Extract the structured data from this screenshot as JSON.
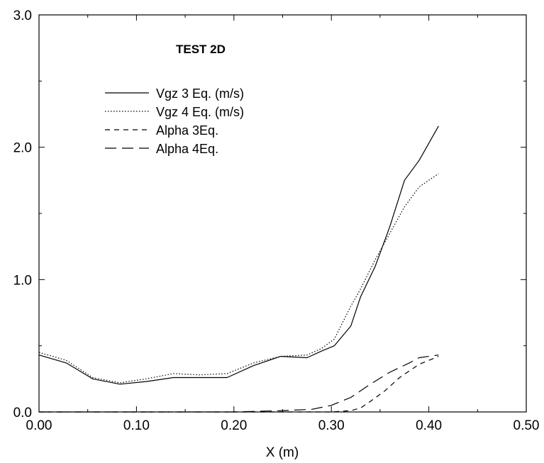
{
  "chart_data": {
    "type": "line",
    "title": "TEST 2D",
    "xlabel": "X (m)",
    "ylabel": "",
    "xlim": [
      0.0,
      0.5
    ],
    "ylim": [
      0.0,
      3.0
    ],
    "x_ticks": [
      "0.00",
      "0.10",
      "0.20",
      "0.30",
      "0.40",
      "0.50"
    ],
    "y_ticks": [
      "0.0",
      "1.0",
      "2.0",
      "3.0"
    ],
    "grid": false,
    "legend_position": "top-left",
    "series": [
      {
        "name": "Vgz 3 Eq. (m/s)",
        "style": "solid",
        "x": [
          0.0,
          0.028,
          0.055,
          0.083,
          0.11,
          0.138,
          0.165,
          0.193,
          0.22,
          0.248,
          0.275,
          0.29,
          0.303,
          0.32,
          0.33,
          0.345,
          0.36,
          0.375,
          0.39,
          0.41
        ],
        "y": [
          0.43,
          0.37,
          0.25,
          0.21,
          0.23,
          0.26,
          0.26,
          0.26,
          0.35,
          0.42,
          0.41,
          0.46,
          0.5,
          0.65,
          0.87,
          1.1,
          1.4,
          1.75,
          1.9,
          2.16
        ]
      },
      {
        "name": "Vgz 4 Eq. (m/s)",
        "style": "dotted",
        "x": [
          0.0,
          0.028,
          0.055,
          0.083,
          0.11,
          0.138,
          0.165,
          0.193,
          0.22,
          0.248,
          0.275,
          0.29,
          0.303,
          0.32,
          0.33,
          0.345,
          0.36,
          0.375,
          0.39,
          0.41
        ],
        "y": [
          0.45,
          0.39,
          0.26,
          0.22,
          0.25,
          0.29,
          0.28,
          0.29,
          0.37,
          0.42,
          0.43,
          0.48,
          0.55,
          0.8,
          0.93,
          1.15,
          1.35,
          1.55,
          1.7,
          1.8
        ]
      },
      {
        "name": "Alpha 3Eq.",
        "style": "dashed",
        "x": [
          0.0,
          0.1,
          0.2,
          0.3,
          0.32,
          0.33,
          0.34,
          0.355,
          0.37,
          0.39,
          0.41
        ],
        "y": [
          0.0,
          0.0,
          0.0,
          0.0,
          0.01,
          0.03,
          0.08,
          0.16,
          0.26,
          0.36,
          0.42
        ]
      },
      {
        "name": "Alpha 4Eq.",
        "style": "long-dashed",
        "x": [
          0.0,
          0.1,
          0.2,
          0.25,
          0.28,
          0.3,
          0.32,
          0.34,
          0.36,
          0.38,
          0.39,
          0.41
        ],
        "y": [
          0.0,
          0.0,
          0.0,
          0.01,
          0.02,
          0.05,
          0.11,
          0.21,
          0.3,
          0.37,
          0.41,
          0.43
        ]
      }
    ]
  }
}
